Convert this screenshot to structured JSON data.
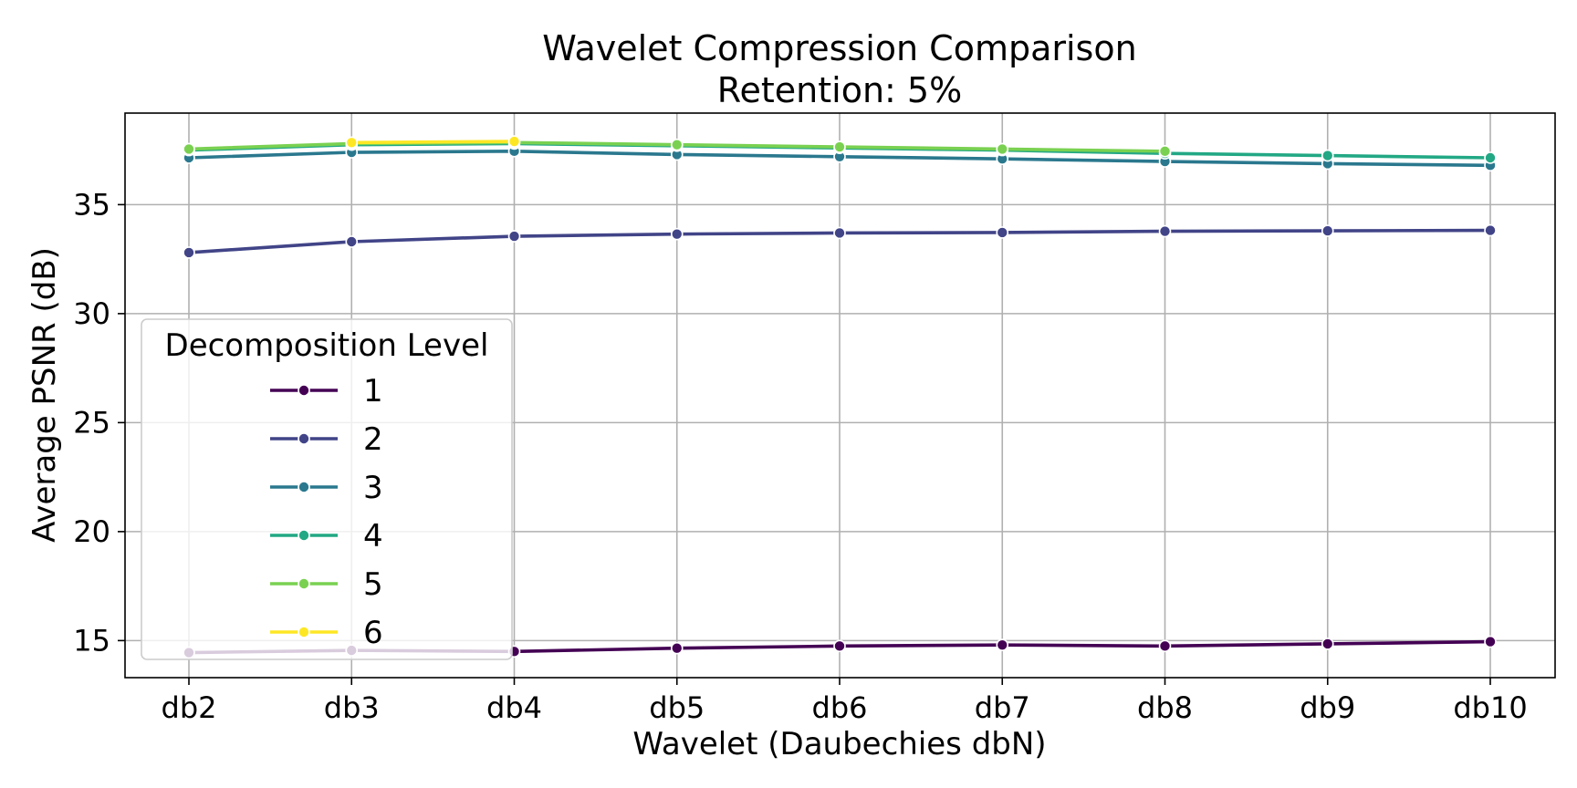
{
  "chart_data": {
    "type": "line",
    "title": "Wavelet Compression Comparison",
    "subtitle": "Retention: 5%",
    "xlabel": "Wavelet (Daubechies dbN)",
    "ylabel": "Average PSNR (dB)",
    "categories": [
      "db2",
      "db3",
      "db4",
      "db5",
      "db6",
      "db7",
      "db8",
      "db9",
      "db10"
    ],
    "ylim": [
      13.3,
      39.2
    ],
    "yticks": [
      15,
      20,
      25,
      30,
      35
    ],
    "grid": true,
    "legend": {
      "title": "Decomposition Level",
      "placement": "lower-left"
    },
    "series": [
      {
        "name": "1",
        "color": "#440154",
        "values": [
          14.45,
          14.55,
          14.5,
          14.65,
          14.75,
          14.8,
          14.75,
          14.85,
          14.95
        ]
      },
      {
        "name": "2",
        "color": "#414487",
        "values": [
          32.8,
          33.3,
          33.55,
          33.65,
          33.7,
          33.72,
          33.78,
          33.8,
          33.82
        ]
      },
      {
        "name": "3",
        "color": "#2a788e",
        "values": [
          37.15,
          37.4,
          37.45,
          37.3,
          37.2,
          37.1,
          36.98,
          36.88,
          36.8
        ]
      },
      {
        "name": "4",
        "color": "#22a884",
        "values": [
          37.5,
          37.75,
          37.8,
          37.7,
          37.6,
          37.5,
          37.35,
          37.25,
          37.15
        ]
      },
      {
        "name": "5",
        "color": "#7ad151",
        "values": [
          37.55,
          37.8,
          37.85,
          37.75,
          37.65,
          37.55,
          37.45,
          null,
          null
        ]
      },
      {
        "name": "6",
        "color": "#fde725",
        "values": [
          null,
          37.85,
          37.9,
          null,
          null,
          null,
          null,
          null,
          null
        ]
      }
    ]
  }
}
